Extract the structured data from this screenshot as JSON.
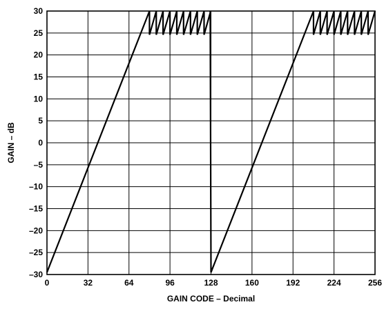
{
  "chart_data": {
    "type": "line",
    "title": "",
    "xlabel": "GAIN CODE – Decimal",
    "ylabel": "GAIN – dB",
    "xlim": [
      0,
      256
    ],
    "ylim": [
      -30,
      30
    ],
    "grid": true,
    "x_ticks": [
      0,
      32,
      64,
      96,
      128,
      160,
      192,
      224,
      256
    ],
    "x_tick_labels": [
      "0",
      "32",
      "64",
      "96",
      "128",
      "160",
      "192",
      "224",
      "256"
    ],
    "y_ticks": [
      30,
      25,
      20,
      15,
      10,
      5,
      0,
      -5,
      -10,
      -15,
      -20,
      -25,
      -30
    ],
    "y_tick_labels": [
      "30",
      "25",
      "20",
      "15",
      "10",
      "5",
      "0",
      "–5",
      "–10",
      "–15",
      "–20",
      "–25",
      "–30"
    ],
    "series": [
      {
        "points": [
          [
            0,
            -29.5
          ],
          [
            80,
            30
          ],
          [
            80,
            24.6
          ],
          [
            85.3,
            30
          ],
          [
            85.3,
            24.6
          ],
          [
            90.6,
            30
          ],
          [
            90.6,
            24.6
          ],
          [
            96,
            30
          ],
          [
            96,
            24.6
          ],
          [
            101.3,
            30
          ],
          [
            101.3,
            24.6
          ],
          [
            106.6,
            30
          ],
          [
            106.6,
            24.6
          ],
          [
            112,
            30
          ],
          [
            112,
            24.6
          ],
          [
            117.3,
            30
          ],
          [
            117.3,
            24.6
          ],
          [
            122.6,
            30
          ],
          [
            122.6,
            24.6
          ],
          [
            127.4,
            29.6
          ],
          [
            127.4,
            30
          ],
          [
            128,
            -29.5
          ],
          [
            208,
            30
          ],
          [
            208,
            24.6
          ],
          [
            213.3,
            30
          ],
          [
            213.3,
            24.6
          ],
          [
            218.6,
            30
          ],
          [
            218.6,
            24.6
          ],
          [
            224,
            30
          ],
          [
            224,
            24.6
          ],
          [
            229.3,
            30
          ],
          [
            229.3,
            24.6
          ],
          [
            234.6,
            30
          ],
          [
            234.6,
            24.6
          ],
          [
            240,
            30
          ],
          [
            240,
            24.6
          ],
          [
            245.3,
            30
          ],
          [
            245.3,
            24.6
          ],
          [
            250.6,
            30
          ],
          [
            250.6,
            24.6
          ],
          [
            256,
            30
          ]
        ]
      }
    ]
  }
}
